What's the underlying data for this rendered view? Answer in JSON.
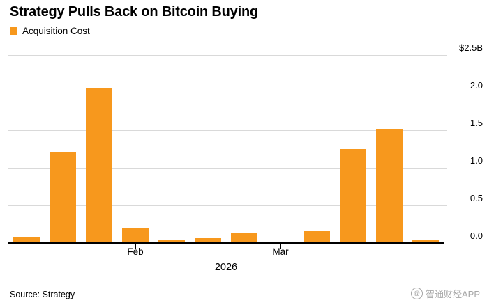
{
  "chart_data": {
    "type": "bar",
    "title": "Strategy Pulls Back on Bitcoin Buying",
    "legend": [
      "Acquisition Cost"
    ],
    "unit": "$B",
    "ylim": [
      0,
      2.5
    ],
    "values": [
      0.09,
      1.22,
      2.07,
      0.21,
      0.06,
      0.07,
      0.14,
      0.02,
      0.17,
      1.26,
      1.53,
      0.05
    ],
    "y_ticks": [
      {
        "label": "$2.5B",
        "value": 2.5
      },
      {
        "label": "2.0",
        "value": 2.0
      },
      {
        "label": "1.5",
        "value": 1.5
      },
      {
        "label": "1.0",
        "value": 1.0
      },
      {
        "label": "0.5",
        "value": 0.5
      },
      {
        "label": "0.0",
        "value": 0.0
      }
    ],
    "x_ticks": [
      {
        "label": "Feb",
        "slot": 3
      },
      {
        "label": "Mar",
        "slot": 7
      }
    ],
    "x_axis_year": "2026",
    "grid": true,
    "legend_position": "top-left",
    "y_axis_side": "right"
  },
  "colors": {
    "bar": "#F7981D",
    "gridline": "#D9D9D9",
    "axis": "#000000",
    "watermark": "#A6A6A6"
  },
  "footer": {
    "source": "Source: Strategy",
    "watermark": "智通财经APP"
  }
}
